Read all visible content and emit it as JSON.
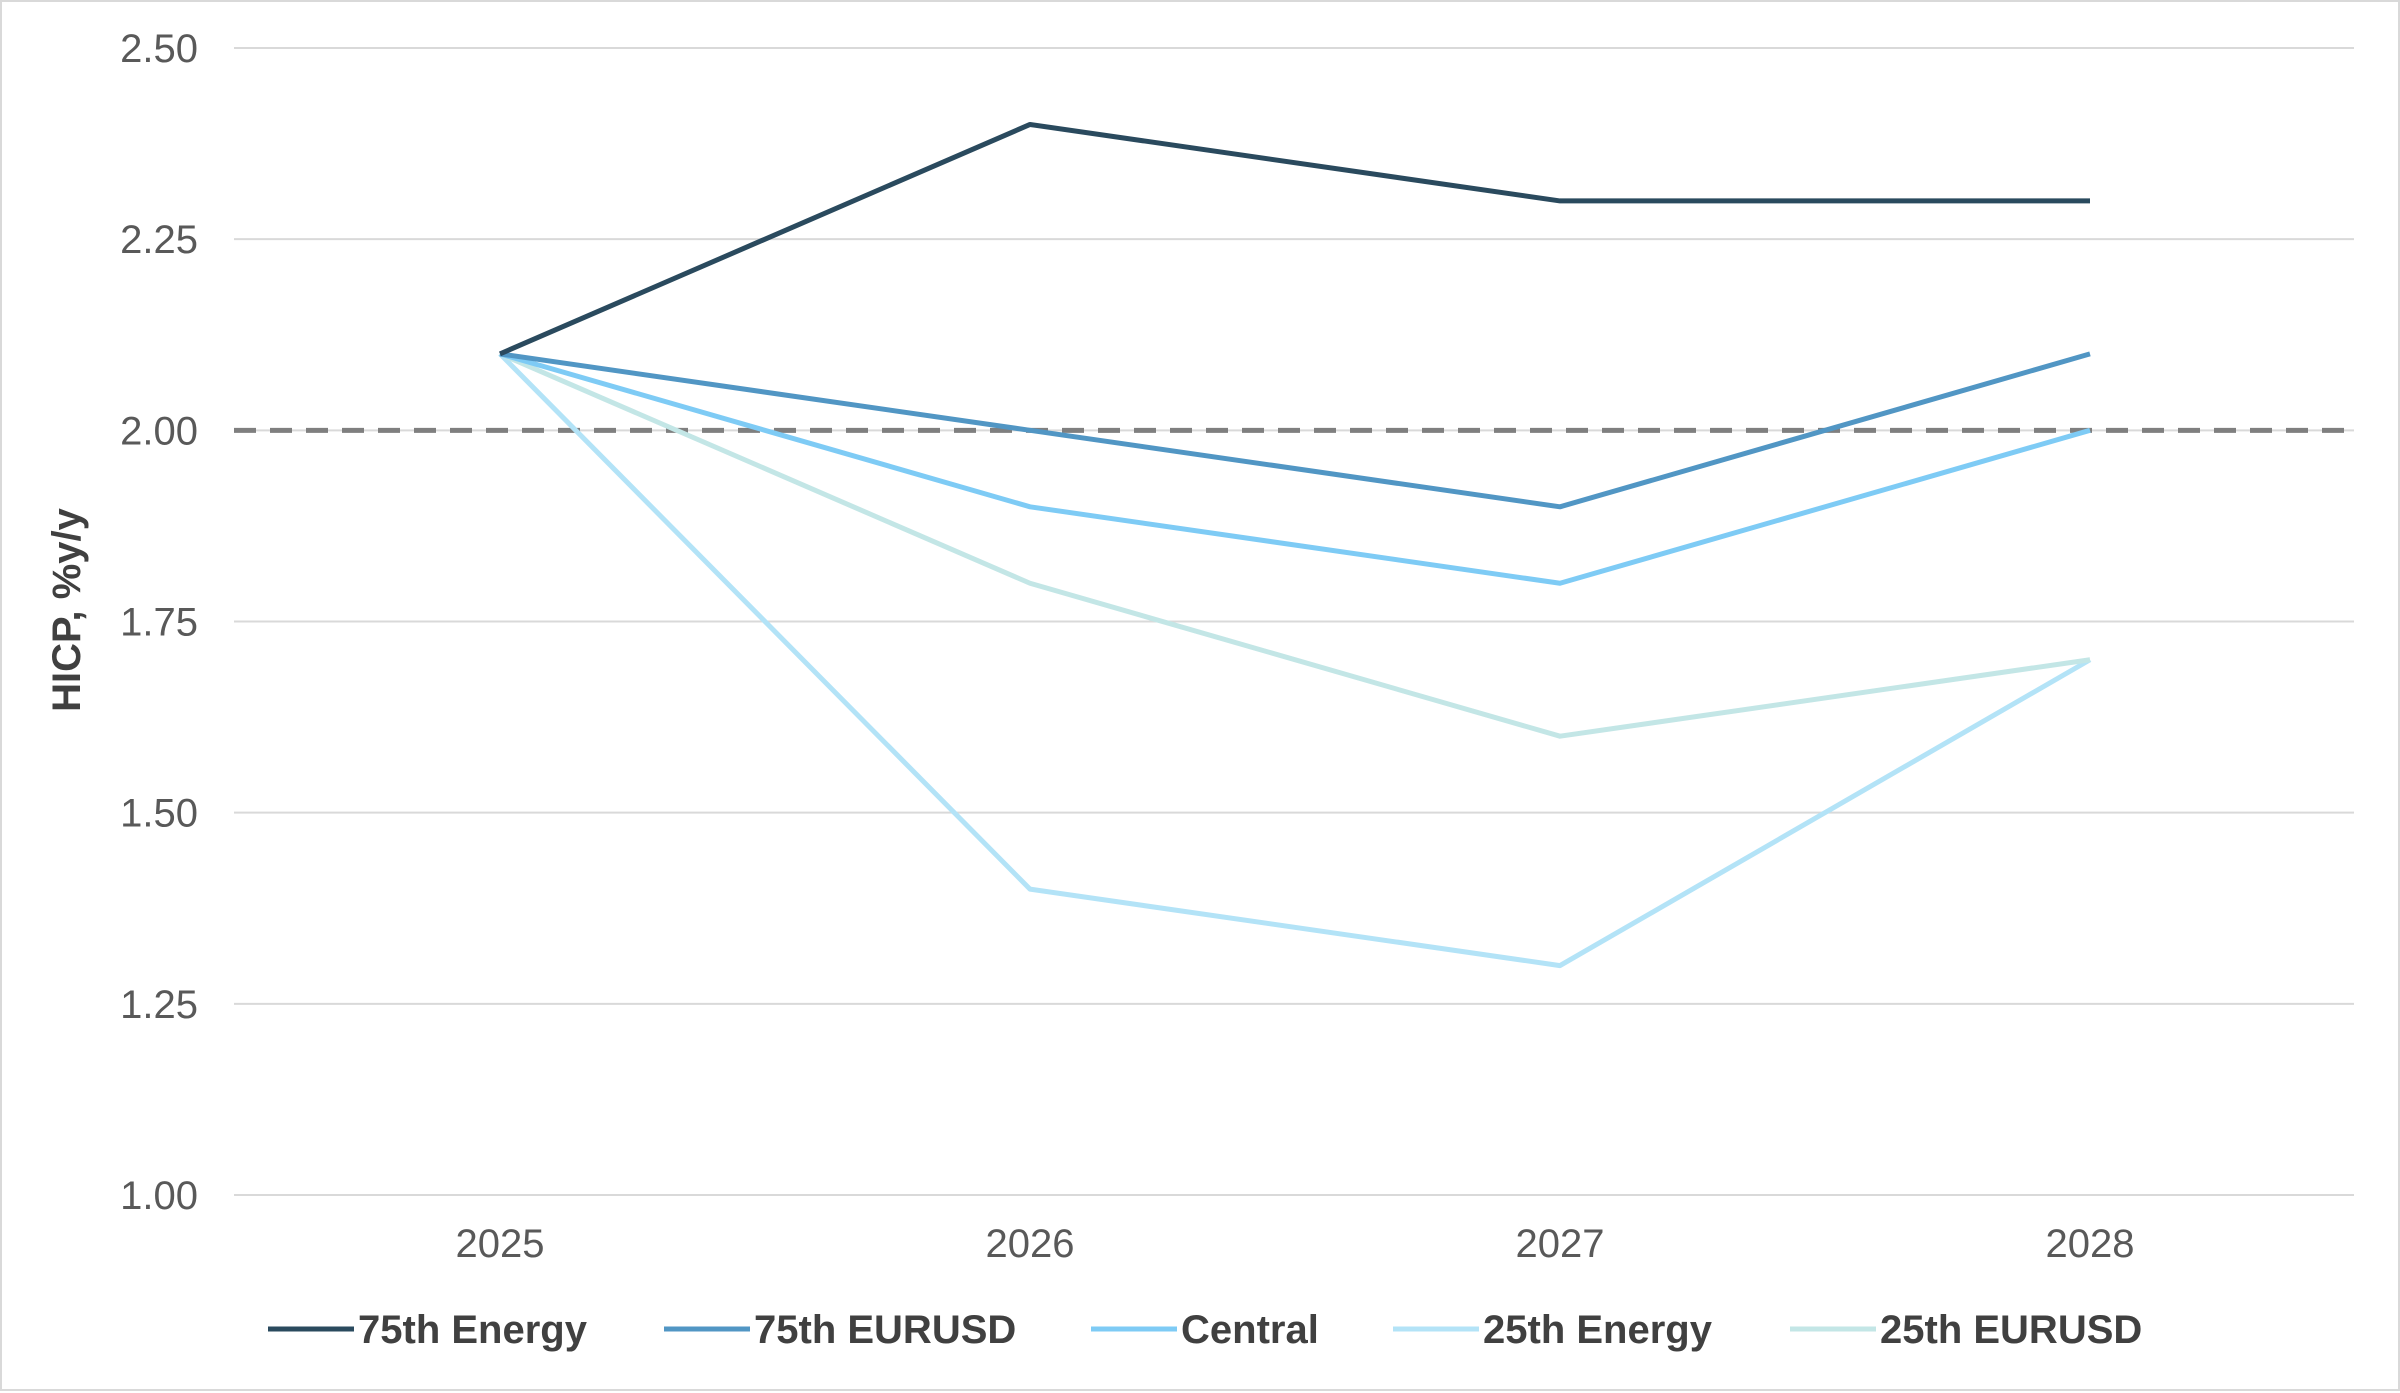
{
  "chart_data": {
    "type": "line",
    "title": "",
    "xlabel": "",
    "ylabel": "HICP, %y/y",
    "categories": [
      "2025",
      "2026",
      "2027",
      "2028"
    ],
    "ylim": [
      1.0,
      2.5
    ],
    "yticks": [
      "1.00",
      "1.25",
      "1.50",
      "1.75",
      "2.00",
      "2.25",
      "2.50"
    ],
    "grid": true,
    "legend_position": "bottom",
    "reference_line": {
      "value": 2.0,
      "style": "dashed",
      "color": "#7f7f7f"
    },
    "series": [
      {
        "name": "75th Energy",
        "values": [
          2.1,
          2.4,
          2.3,
          2.3
        ],
        "color": "#2a4a5e"
      },
      {
        "name": "75th EURUSD",
        "values": [
          2.1,
          2.0,
          1.9,
          2.1
        ],
        "color": "#5196c4"
      },
      {
        "name": "Central",
        "values": [
          2.1,
          1.9,
          1.8,
          2.0
        ],
        "color": "#7ecbf5"
      },
      {
        "name": "25th Energy",
        "values": [
          2.1,
          1.4,
          1.3,
          1.7
        ],
        "color": "#b3e3f7"
      },
      {
        "name": "25th EURUSD",
        "values": [
          2.1,
          1.8,
          1.6,
          1.7
        ],
        "color": "#c3e6e6"
      }
    ]
  }
}
